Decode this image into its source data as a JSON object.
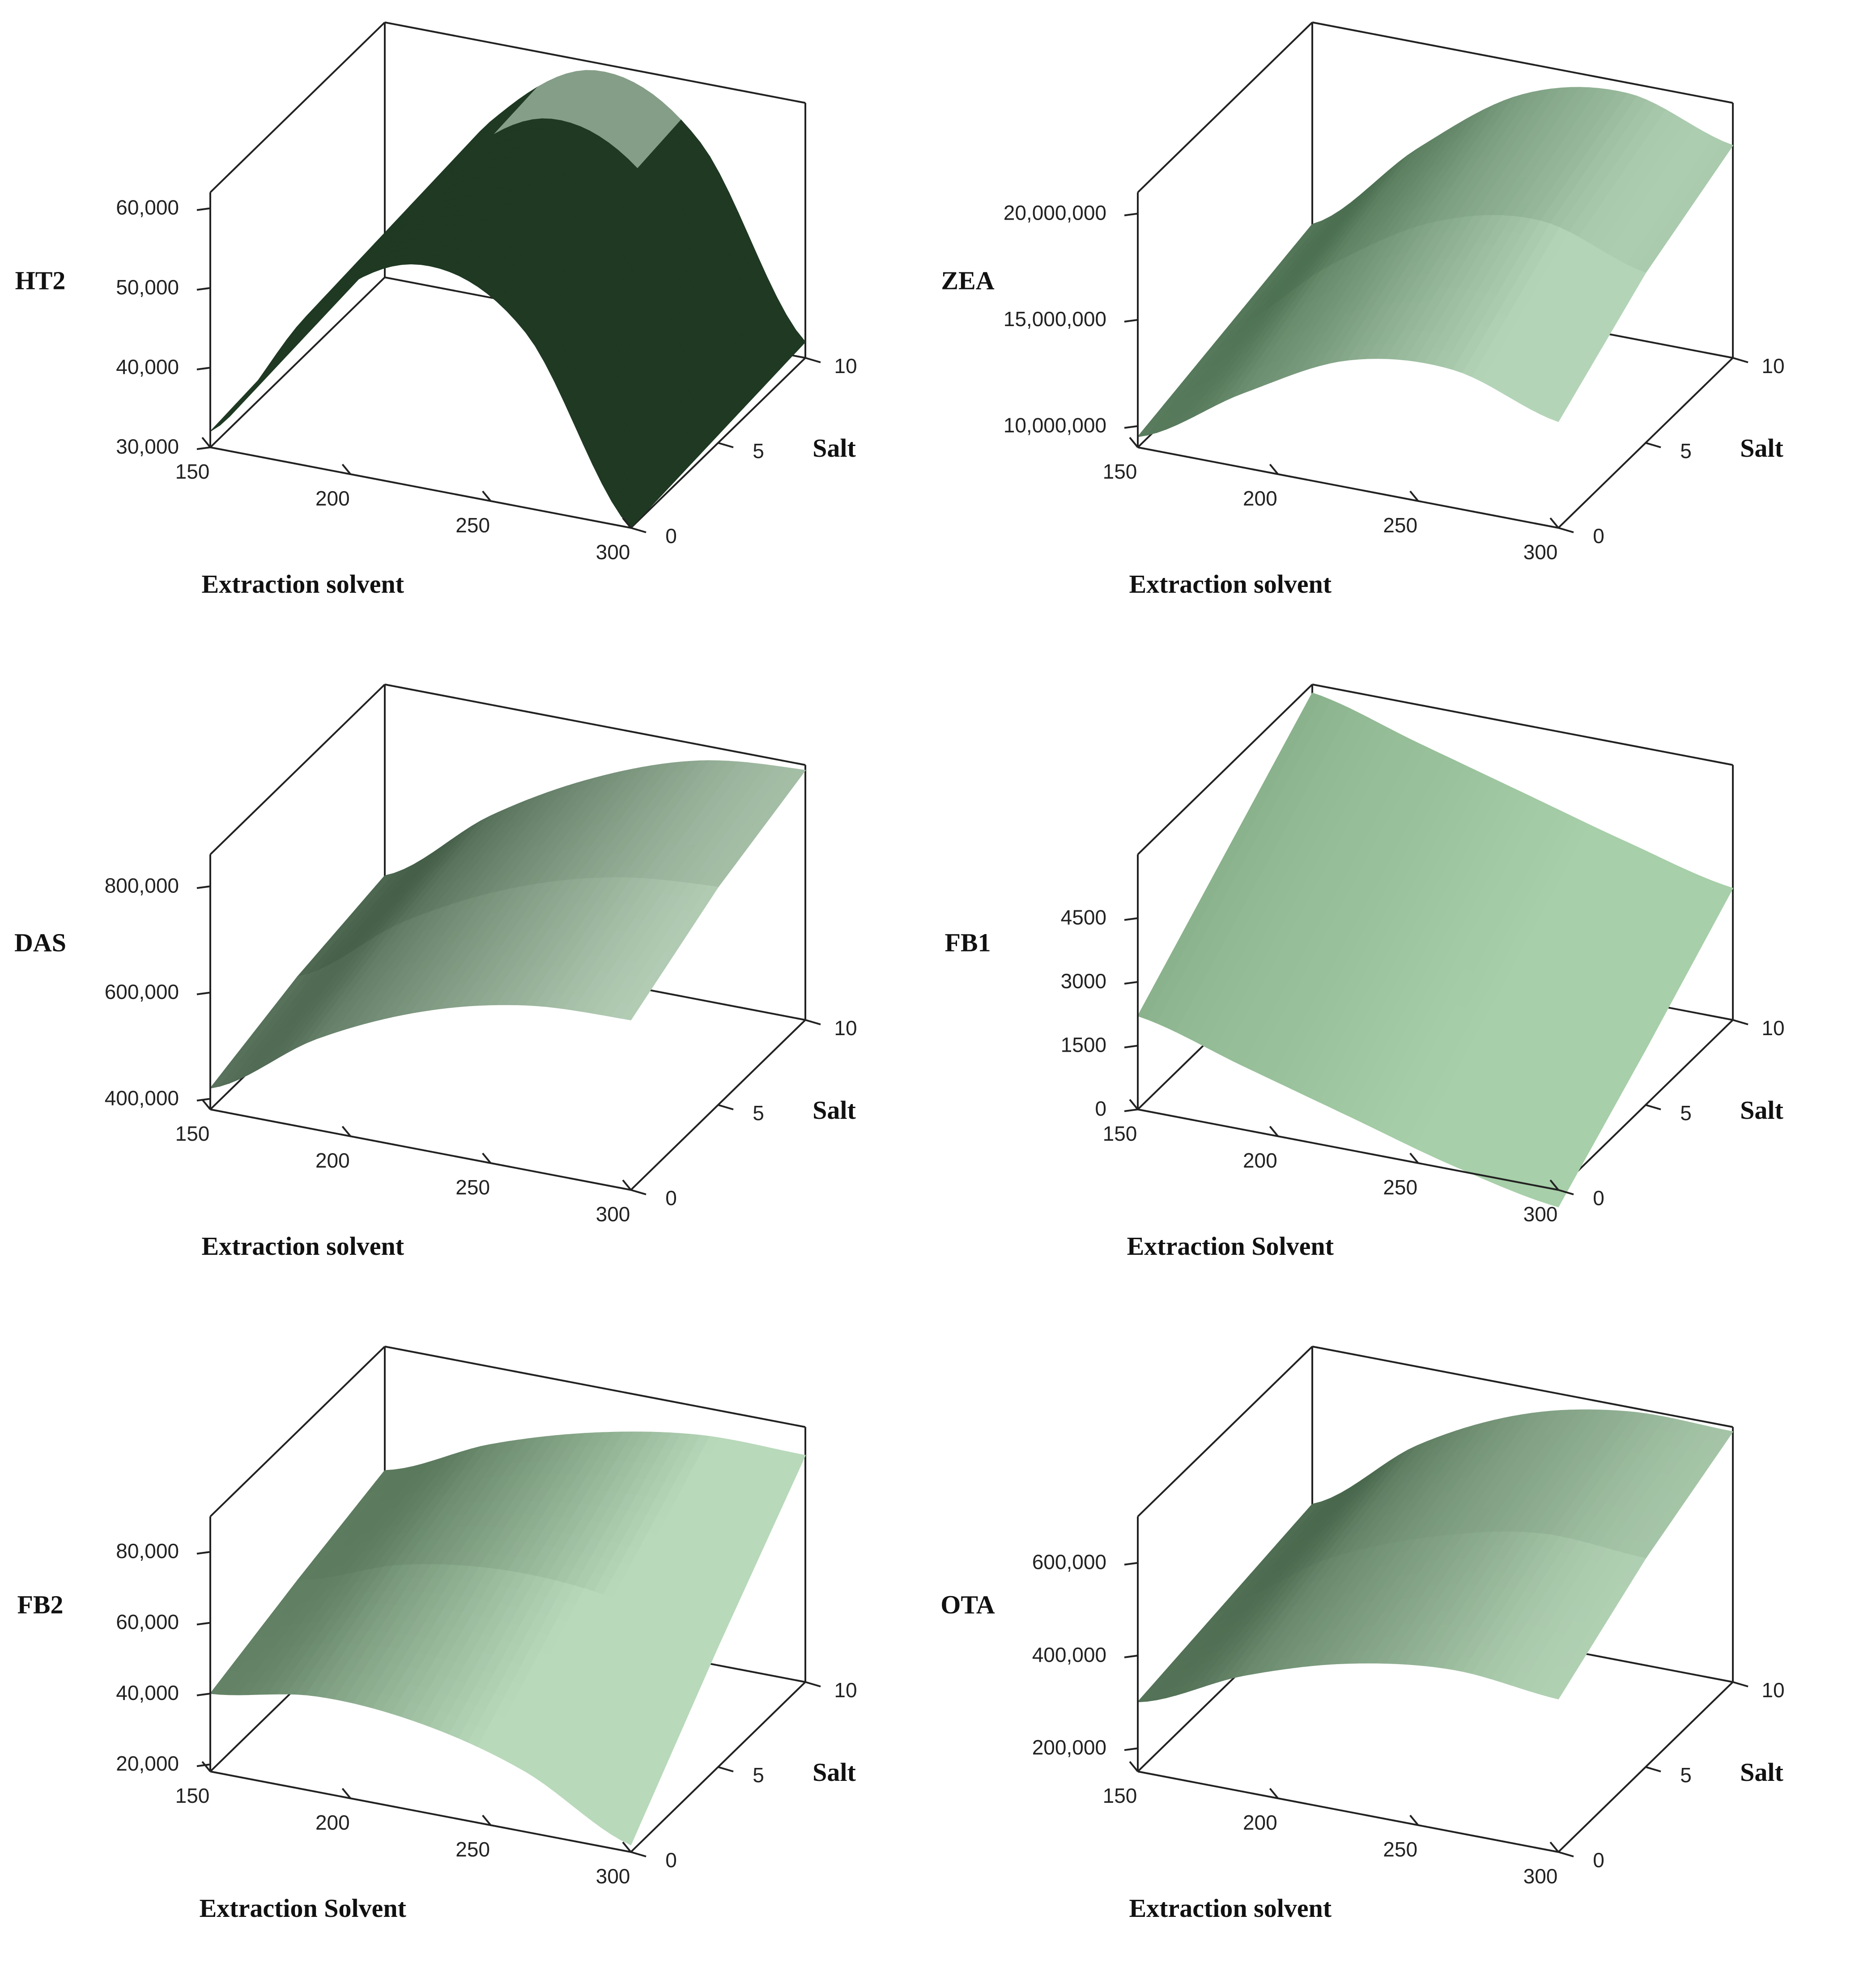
{
  "chart_data": [
    {
      "type": "surface",
      "zlabel": "HT2",
      "xlabel": "Extraction solvent",
      "ylabel": "Salt",
      "x_ticks": [
        "150",
        "200",
        "250",
        "300"
      ],
      "y_ticks": [
        "0",
        "5",
        "10"
      ],
      "z_ticks": [
        "30,000",
        "40,000",
        "50,000",
        "60,000"
      ],
      "xlim": [
        150,
        300
      ],
      "ylim": [
        0,
        10
      ],
      "zlim": [
        30000,
        62000
      ],
      "grid": [
        [
          32000,
          50000,
          58000,
          52000,
          30000
        ],
        [
          33000,
          51000,
          59500,
          53000,
          31000
        ],
        [
          34000,
          52000,
          61000,
          54500,
          32000
        ]
      ],
      "colors": {
        "dark": "#16301a",
        "light": "#cfe8d2"
      }
    },
    {
      "type": "surface",
      "zlabel": "ZEA",
      "xlabel": "Extraction solvent",
      "ylabel": "Salt",
      "x_ticks": [
        "150",
        "200",
        "250",
        "300"
      ],
      "y_ticks": [
        "0",
        "5",
        "10"
      ],
      "z_ticks": [
        "10,000,000",
        "15,000,000",
        "20,000,000"
      ],
      "xlim": [
        150,
        300
      ],
      "ylim": [
        0,
        10
      ],
      "zlim": [
        9000000,
        21000000
      ],
      "grid": [
        [
          9500000,
          12500000,
          15000000,
          15500000,
          14000000
        ],
        [
          10500000,
          14500000,
          17500000,
          18500000,
          17000000
        ],
        [
          11500000,
          16000000,
          19500000,
          20500000,
          19000000
        ]
      ],
      "colors": {
        "dark": "#24492a",
        "light": "#b4d4b7"
      }
    },
    {
      "type": "surface",
      "zlabel": "DAS",
      "xlabel": "Extraction solvent",
      "ylabel": "Salt",
      "x_ticks": [
        "150",
        "200",
        "250",
        "300"
      ],
      "y_ticks": [
        "0",
        "5",
        "10"
      ],
      "z_ticks": [
        "400,000",
        "600,000",
        "800,000"
      ],
      "xlim": [
        150,
        300
      ],
      "ylim": [
        0,
        10
      ],
      "zlim": [
        380000,
        860000
      ],
      "grid": [
        [
          420000,
          550000,
          640000,
          690000,
          700000
        ],
        [
          470000,
          610000,
          710000,
          770000,
          790000
        ],
        [
          500000,
          650000,
          760000,
          830000,
          850000
        ]
      ],
      "colors": {
        "dark": "#16301a",
        "light": "#c2dcc4"
      }
    },
    {
      "type": "surface",
      "zlabel": "FB1",
      "xlabel": "Extraction Solvent",
      "ylabel": "Salt",
      "x_ticks": [
        "150",
        "200",
        "250",
        "300"
      ],
      "y_ticks": [
        "0",
        "5",
        "10"
      ],
      "z_ticks": [
        "0",
        "1500",
        "3000",
        "4500"
      ],
      "xlim": [
        150,
        300
      ],
      "ylim": [
        0,
        10
      ],
      "zlim": [
        0,
        6000
      ],
      "grid": [
        [
          2200,
          1500,
          800,
          100,
          -400
        ],
        [
          4000,
          3300,
          2600,
          1900,
          1300
        ],
        [
          5800,
          5100,
          4400,
          3700,
          3100
        ]
      ],
      "colors": {
        "dark": "#355e3a",
        "light": "#a7cfa9"
      }
    },
    {
      "type": "surface",
      "zlabel": "FB2",
      "xlabel": "Extraction Solvent",
      "ylabel": "Salt",
      "x_ticks": [
        "150",
        "200",
        "250",
        "300"
      ],
      "y_ticks": [
        "0",
        "5",
        "10"
      ],
      "z_ticks": [
        "20,000",
        "40,000",
        "60,000",
        "80,000"
      ],
      "xlim": [
        150,
        300
      ],
      "ylim": [
        0,
        10
      ],
      "zlim": [
        18000,
        90000
      ],
      "grid": [
        [
          40000,
          45000,
          43000,
          35000,
          20000
        ],
        [
          48000,
          58000,
          62000,
          60000,
          52000
        ],
        [
          55000,
          68000,
          77000,
          82000,
          82000
        ]
      ],
      "colors": {
        "dark": "#1d3a20",
        "light": "#b8d9ba"
      }
    },
    {
      "type": "surface",
      "zlabel": "OTA",
      "xlabel": "Extraction solvent",
      "ylabel": "Salt",
      "x_ticks": [
        "150",
        "200",
        "250",
        "300"
      ],
      "y_ticks": [
        "0",
        "5",
        "10"
      ],
      "z_ticks": [
        "200,000",
        "400,000",
        "600,000"
      ],
      "xlim": [
        150,
        300
      ],
      "ylim": [
        0,
        10
      ],
      "zlim": [
        150000,
        700000
      ],
      "grid": [
        [
          300000,
          400000,
          470000,
          500000,
          480000
        ],
        [
          330000,
          470000,
          560000,
          610000,
          600000
        ],
        [
          360000,
          530000,
          640000,
          690000,
          690000
        ]
      ],
      "colors": {
        "dark": "#1f3d23",
        "light": "#b6d6b8"
      }
    }
  ]
}
